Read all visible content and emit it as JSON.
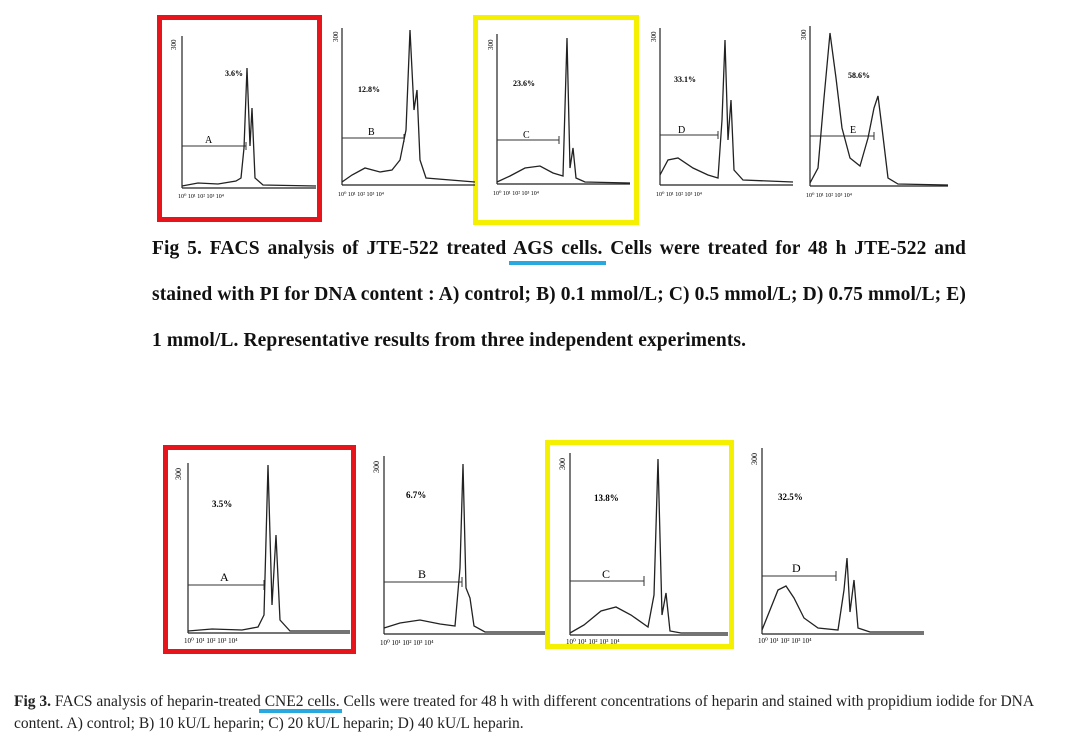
{
  "figure5": {
    "panels": [
      {
        "id": "A",
        "label": "A",
        "percent": "3.6%",
        "highlight": "red"
      },
      {
        "id": "B",
        "label": "B",
        "percent": "12.8%",
        "highlight": "none"
      },
      {
        "id": "C",
        "label": "C",
        "percent": "23.6%",
        "highlight": "yellow"
      },
      {
        "id": "D",
        "label": "D",
        "percent": "33.1%",
        "highlight": "none"
      },
      {
        "id": "E",
        "label": "E",
        "percent": "58.6%",
        "highlight": "none"
      }
    ],
    "y_tick": "300",
    "caption": {
      "part1": "Fig 5. FACS analysis of JTE-522 treated ",
      "underlined": "AGS cells",
      "part2": ". Cells were treated for 48 h JTE-522 and stained with PI for DNA content : A) control; B) 0.1 mmol/L; C) 0.5 mmol/L; D) 0.75 mmol/L; E) 1 mmol/L. Representative results from three independent experiments."
    }
  },
  "figure3": {
    "panels": [
      {
        "id": "A",
        "label": "A",
        "percent": "3.5%",
        "highlight": "red"
      },
      {
        "id": "B",
        "label": "B",
        "percent": "6.7%",
        "highlight": "none"
      },
      {
        "id": "C",
        "label": "C",
        "percent": "13.8%",
        "highlight": "yellow"
      },
      {
        "id": "D",
        "label": "D",
        "percent": "32.5%",
        "highlight": "none"
      }
    ],
    "y_tick": "300",
    "caption": {
      "label": "Fig 3.",
      "part1": " FACS analysis of heparin-treated ",
      "underlined": "CNE2 cells",
      "part2": ". Cells were treated for 48 h with different concentrations of heparin and stained with propidium iodide for DNA content. A) control; B) 10 kU/L heparin; C) 20 kU/L heparin; D) 40 kU/L heparin."
    }
  },
  "colors": {
    "red": "#e8141b",
    "yellow": "#f5f000",
    "underline": "#29a8e0"
  }
}
